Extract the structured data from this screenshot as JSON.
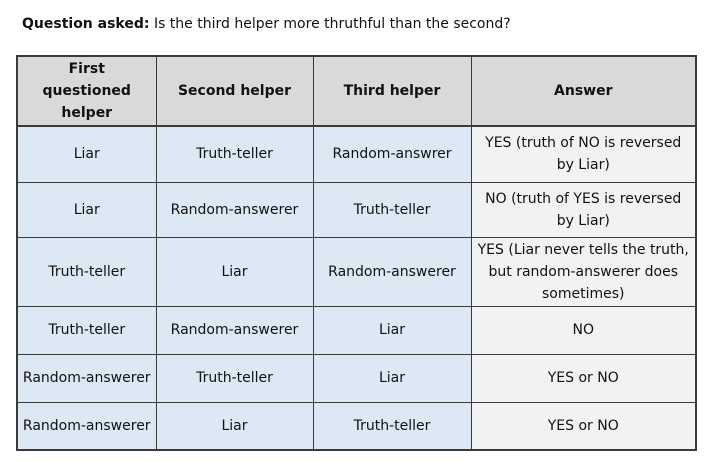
{
  "question": {
    "label": "Question asked:",
    "text": "Is the third helper more thruthful than the second?"
  },
  "table": {
    "headers": [
      "First questioned helper",
      "Second helper",
      "Third helper",
      "Answer"
    ],
    "rows": [
      [
        "Liar",
        "Truth-teller",
        "Random-answrer",
        "YES (truth of NO is reversed by Liar)"
      ],
      [
        "Liar",
        "Random-answerer",
        "Truth-teller",
        "NO (truth of YES is reversed by Liar)"
      ],
      [
        "Truth-teller",
        "Liar",
        "Random-answerer",
        "YES (Liar never tells the truth, but random-answerer does sometimes)"
      ],
      [
        "Truth-teller",
        "Random-answerer",
        "Liar",
        "NO"
      ],
      [
        "Random-answerer",
        "Truth-teller",
        "Liar",
        "YES or NO"
      ],
      [
        "Random-answerer",
        "Liar",
        "Truth-teller",
        "YES or NO"
      ]
    ]
  },
  "colors": {
    "header_bg": "#d9d9d9",
    "role_cell_bg": "#dce9f5",
    "answer_cell_bg": "#f2f2f2",
    "border": "#3a3a3a"
  }
}
